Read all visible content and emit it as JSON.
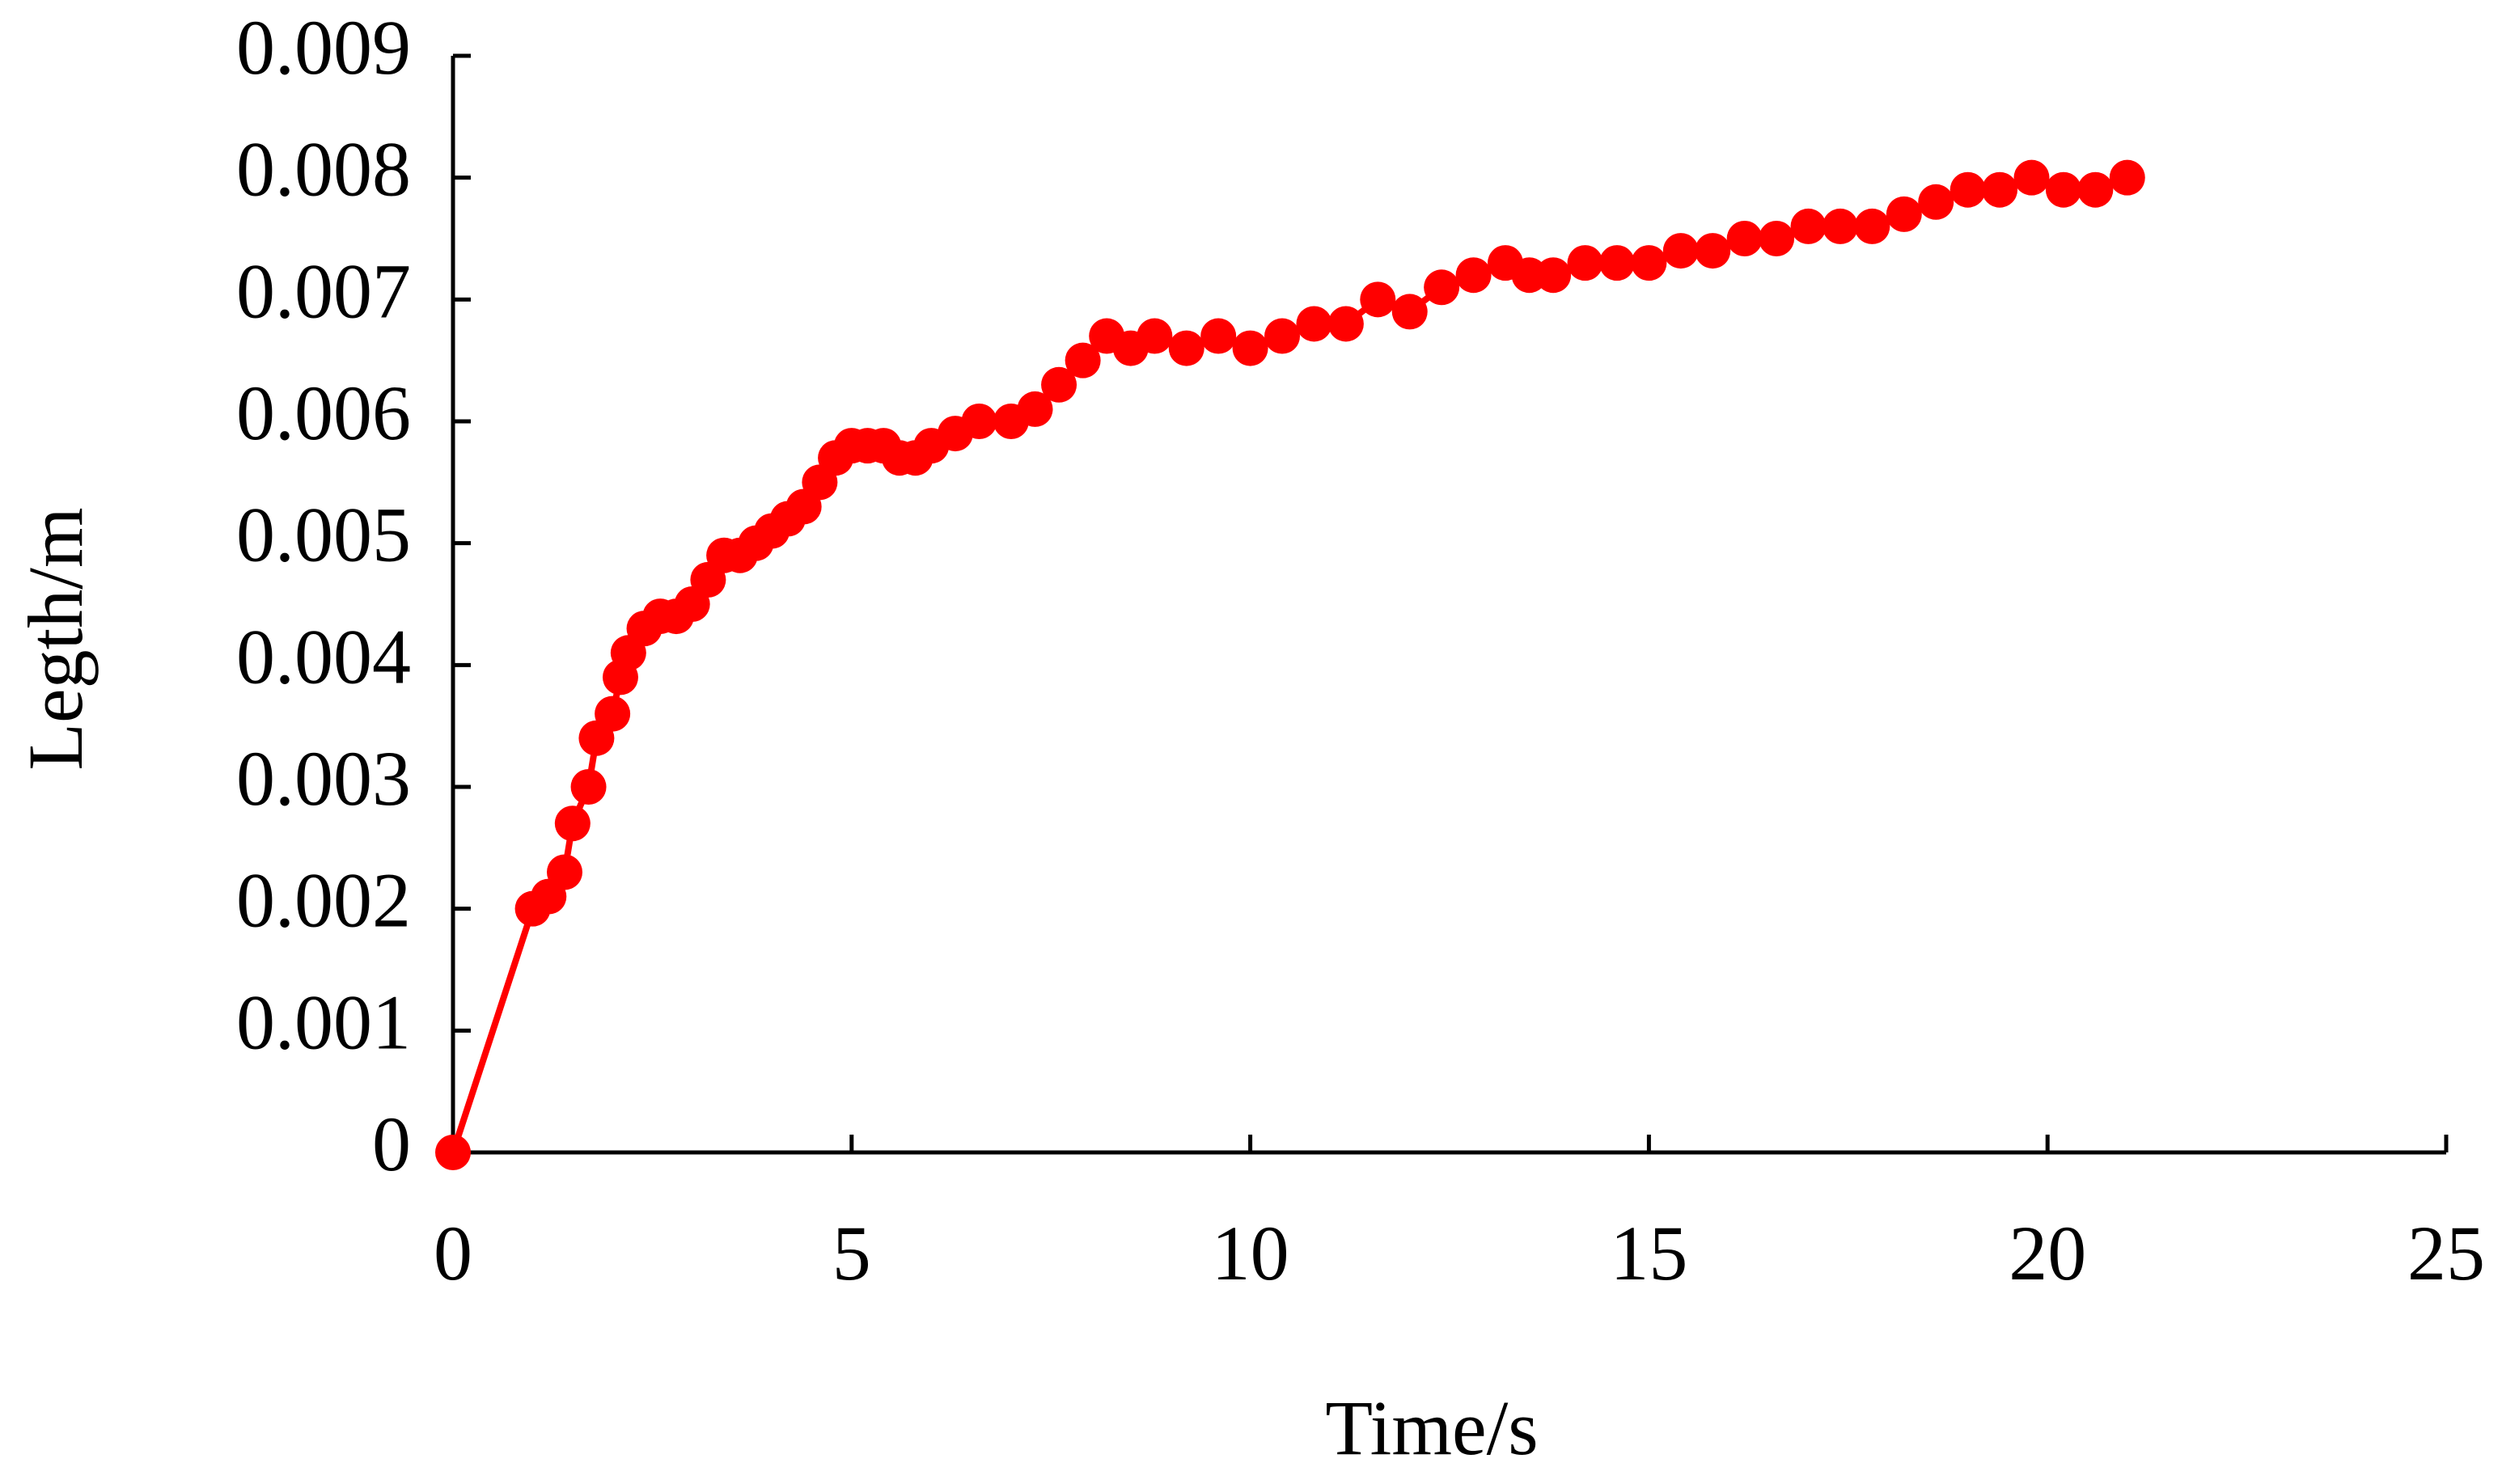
{
  "chart_data": {
    "type": "line",
    "x_label": "Time/s",
    "y_label": "Legth/m",
    "xlim": [
      0,
      25
    ],
    "xticks": [
      0,
      5,
      10,
      15,
      20,
      25
    ],
    "ylim": [
      0,
      0.009
    ],
    "yticks": [
      0,
      0.001,
      0.002,
      0.003,
      0.004,
      0.005,
      0.006,
      0.007,
      0.008,
      0.009
    ],
    "grid": false,
    "markers": true,
    "series": [
      {
        "color": "#ff0000",
        "x": [
          0,
          1.0,
          1.2,
          1.4,
          1.5,
          1.7,
          1.8,
          2.0,
          2.1,
          2.2,
          2.4,
          2.6,
          2.8,
          3.0,
          3.2,
          3.4,
          3.6,
          3.8,
          4.0,
          4.2,
          4.4,
          4.6,
          4.8,
          5.0,
          5.2,
          5.4,
          5.6,
          5.8,
          6.0,
          6.3,
          6.6,
          7.0,
          7.3,
          7.6,
          7.9,
          8.2,
          8.5,
          8.8,
          9.2,
          9.6,
          10.0,
          10.4,
          10.8,
          11.2,
          11.6,
          12.0,
          12.4,
          12.8,
          13.2,
          13.5,
          13.8,
          14.2,
          14.6,
          15.0,
          15.4,
          15.8,
          16.2,
          16.6,
          17.0,
          17.4,
          17.8,
          18.2,
          18.6,
          19.0,
          19.4,
          19.8,
          20.2,
          20.6,
          21.0
        ],
        "values": [
          0,
          0.002,
          0.0021,
          0.0023,
          0.0027,
          0.003,
          0.0034,
          0.0036,
          0.0039,
          0.0041,
          0.0043,
          0.0044,
          0.0044,
          0.0045,
          0.0047,
          0.0049,
          0.0049,
          0.005,
          0.0051,
          0.0052,
          0.0053,
          0.0055,
          0.0057,
          0.0058,
          0.0058,
          0.0058,
          0.0057,
          0.0057,
          0.0058,
          0.0059,
          0.006,
          0.006,
          0.0061,
          0.0063,
          0.0065,
          0.0067,
          0.0066,
          0.0067,
          0.0066,
          0.0067,
          0.0066,
          0.0067,
          0.0068,
          0.0068,
          0.007,
          0.0069,
          0.0071,
          0.0072,
          0.0073,
          0.0072,
          0.0072,
          0.0073,
          0.0073,
          0.0073,
          0.0074,
          0.0074,
          0.0075,
          0.0075,
          0.0076,
          0.0076,
          0.0076,
          0.0077,
          0.0078,
          0.0079,
          0.0079,
          0.008,
          0.0079,
          0.0079,
          0.008
        ]
      }
    ]
  }
}
